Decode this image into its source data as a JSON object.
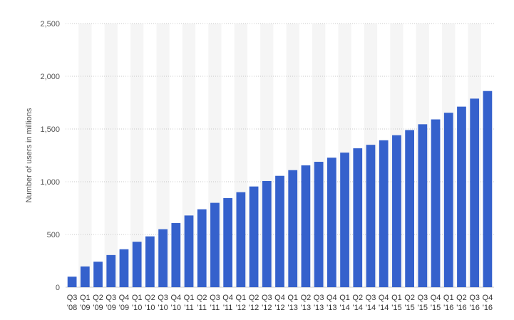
{
  "colors": {
    "bar": "#3561cc",
    "band": "#f5f5f5",
    "grid": "#c8c8c8",
    "axis_text": "#555555"
  },
  "chart_data": {
    "type": "bar",
    "title": "",
    "xlabel": "",
    "ylabel": "Number of users in millions",
    "ylim": [
      0,
      2500
    ],
    "yticks": [
      0,
      500,
      1000,
      1500,
      2000,
      2500
    ],
    "ytick_labels": [
      "0",
      "500",
      "1,000",
      "1,500",
      "2,000",
      "2,500"
    ],
    "grid": true,
    "legend": false,
    "categories": [
      [
        "Q3",
        "'08"
      ],
      [
        "Q1",
        "'09"
      ],
      [
        "Q2",
        "'09"
      ],
      [
        "Q3",
        "'09"
      ],
      [
        "Q4",
        "'09"
      ],
      [
        "Q1",
        "'10"
      ],
      [
        "Q2",
        "'10"
      ],
      [
        "Q3",
        "'10"
      ],
      [
        "Q4",
        "'10"
      ],
      [
        "Q1",
        "'11"
      ],
      [
        "Q2",
        "'11"
      ],
      [
        "Q3",
        "'11"
      ],
      [
        "Q4",
        "'11"
      ],
      [
        "Q1",
        "'12"
      ],
      [
        "Q2",
        "'12"
      ],
      [
        "Q3",
        "'12"
      ],
      [
        "Q4",
        "'12"
      ],
      [
        "Q1",
        "'13"
      ],
      [
        "Q2",
        "'13"
      ],
      [
        "Q3",
        "'13"
      ],
      [
        "Q4",
        "'13"
      ],
      [
        "Q1",
        "'14"
      ],
      [
        "Q2",
        "'14"
      ],
      [
        "Q3",
        "'14"
      ],
      [
        "Q4",
        "'14"
      ],
      [
        "Q1",
        "'15"
      ],
      [
        "Q2",
        "'15"
      ],
      [
        "Q3",
        "'15"
      ],
      [
        "Q4",
        "'15"
      ],
      [
        "Q1",
        "'16"
      ],
      [
        "Q2",
        "'16"
      ],
      [
        "Q3",
        "'16"
      ],
      [
        "Q4",
        "'16"
      ]
    ],
    "values": [
      100,
      197,
      242,
      305,
      360,
      431,
      482,
      550,
      608,
      680,
      739,
      800,
      845,
      901,
      955,
      1007,
      1056,
      1110,
      1155,
      1189,
      1228,
      1276,
      1317,
      1350,
      1393,
      1441,
      1490,
      1545,
      1591,
      1654,
      1712,
      1788,
      1860
    ]
  }
}
